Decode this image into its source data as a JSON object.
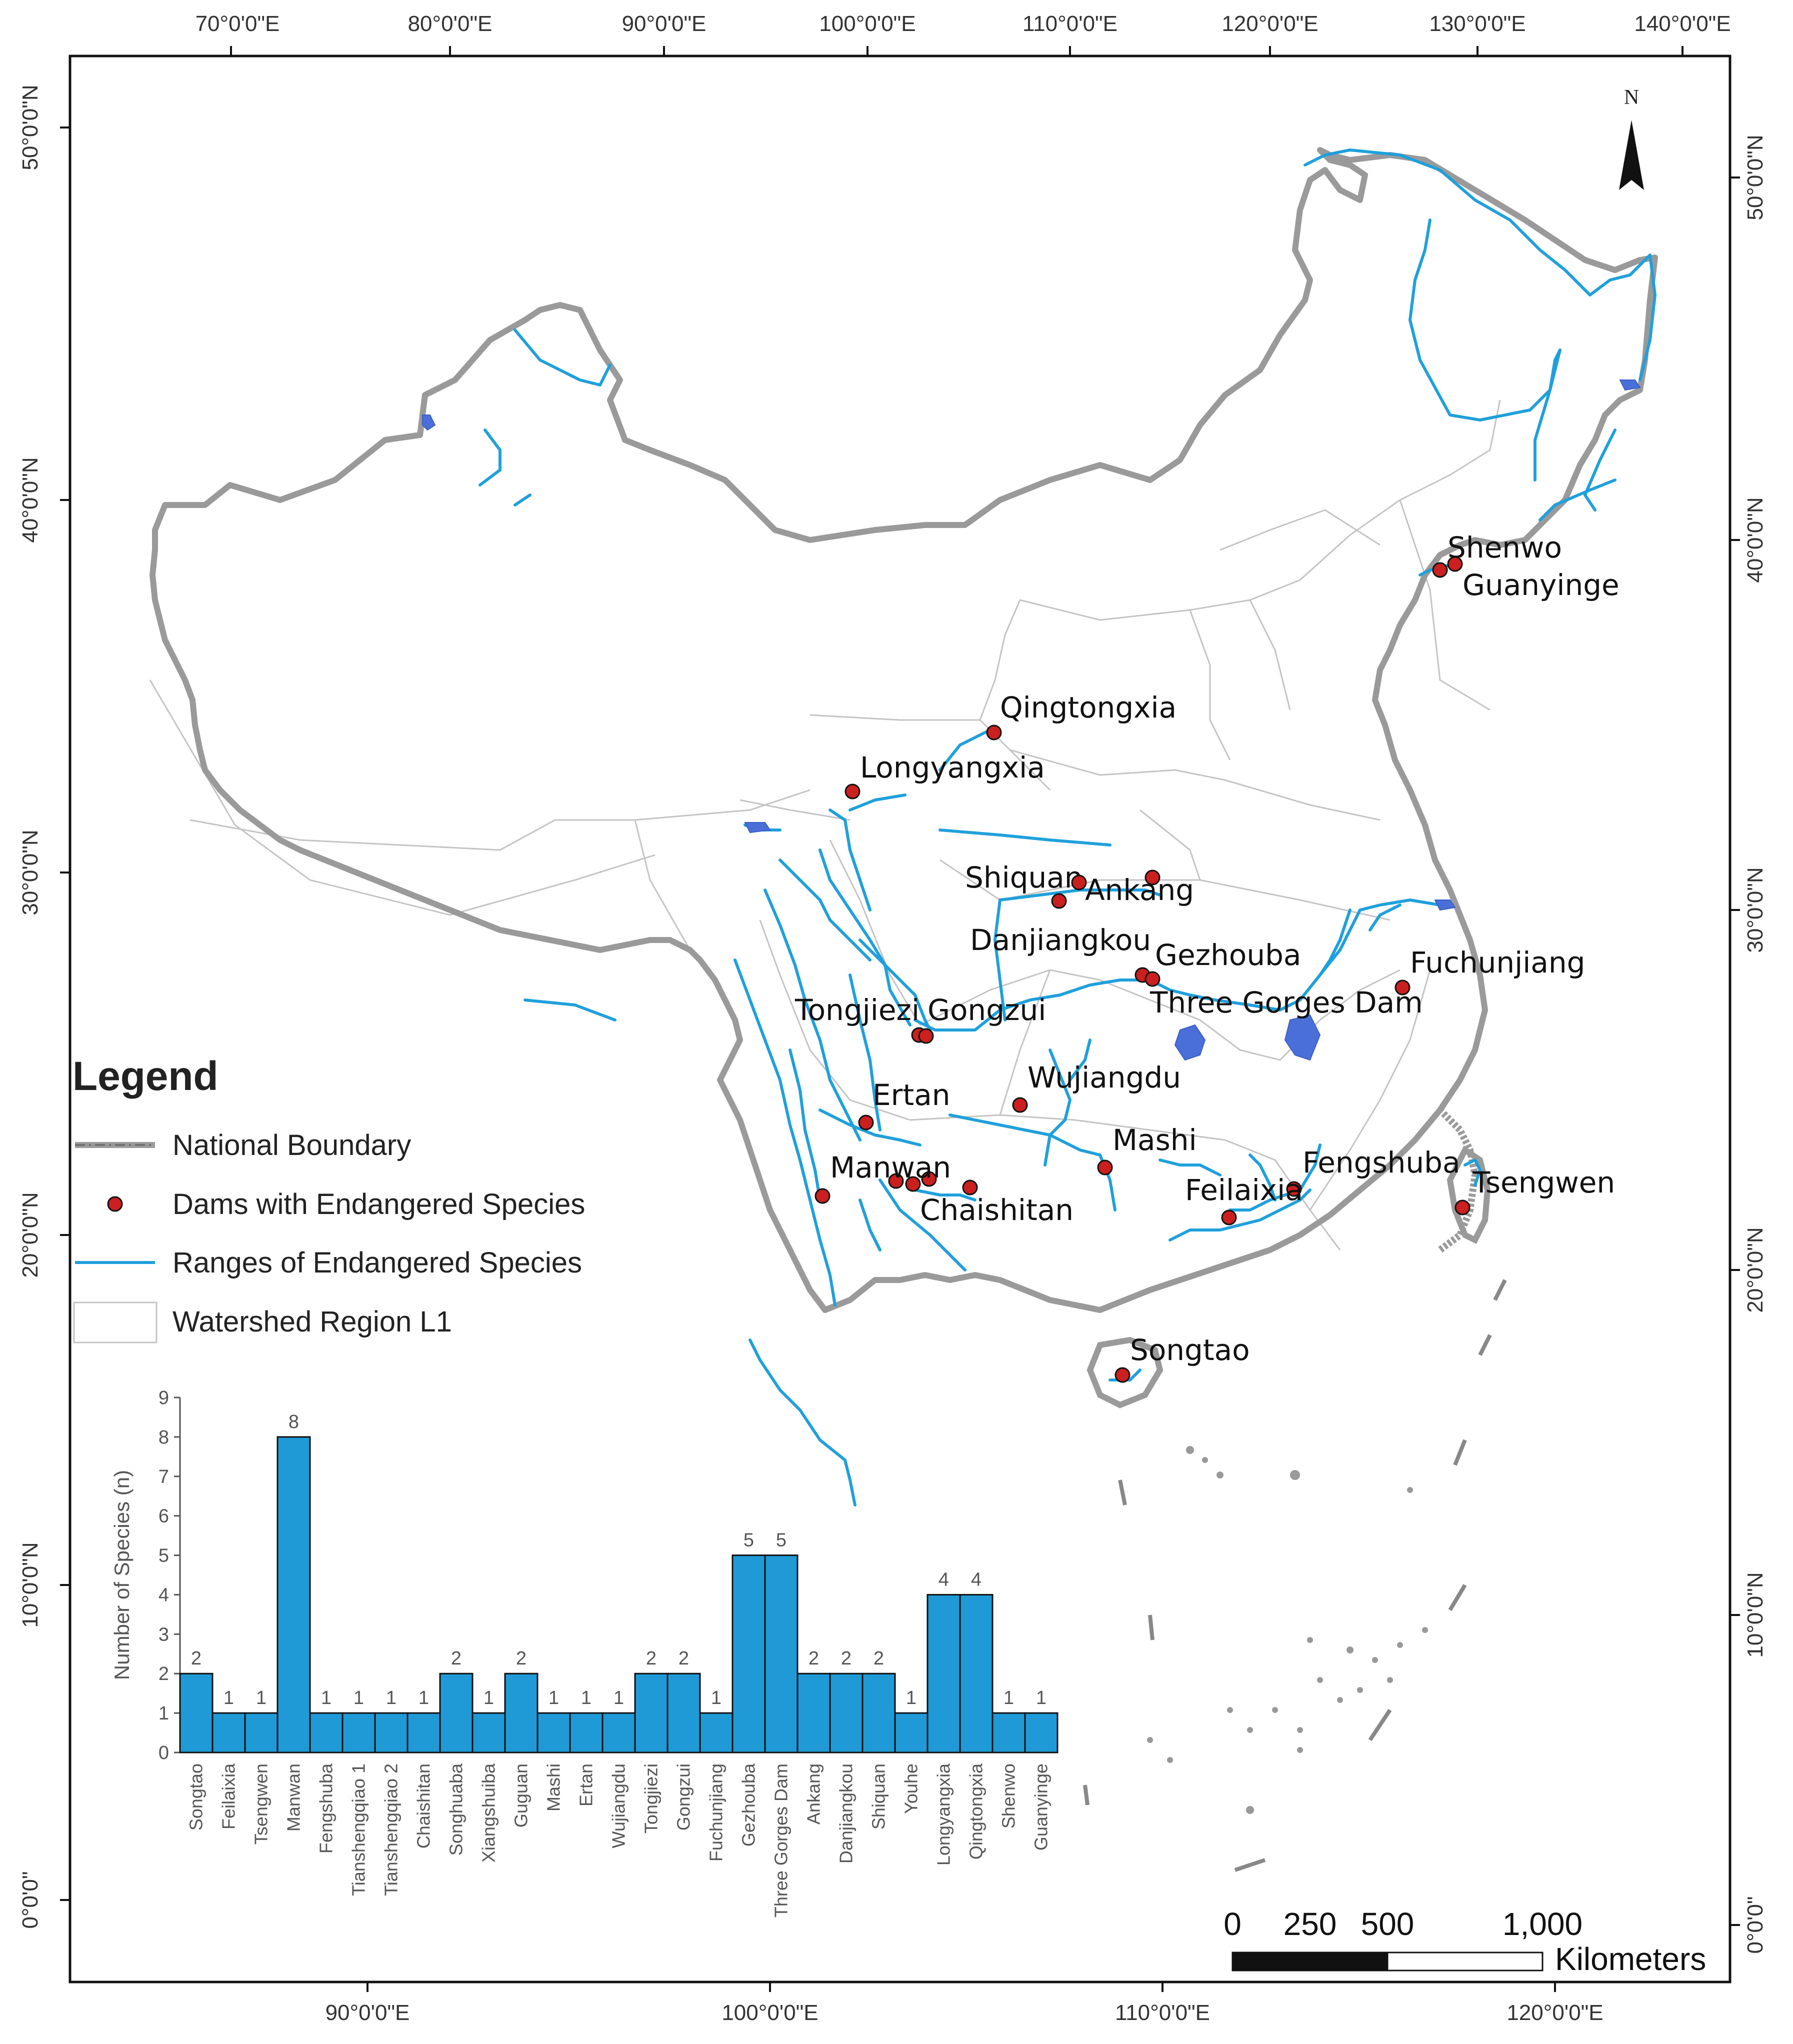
{
  "colors": {
    "boundary": "#9a9a9a",
    "watershed": "#c4c4c4",
    "river": "#1fa0dc",
    "lake": "#4a6fd8",
    "dam": "#cc1f1f",
    "bar": "#1f9ad6"
  },
  "axes": {
    "top": [
      "70°0'0\"E",
      "80°0'0\"E",
      "90°0'0\"E",
      "100°0'0\"E",
      "110°0'0\"E",
      "120°0'0\"E",
      "130°0'0\"E",
      "140°0'0\"E"
    ],
    "bottom": [
      "90°0'0\"E",
      "100°0'0\"E",
      "110°0'0\"E",
      "120°0'0\"E"
    ],
    "left": [
      "50°0'0\"N",
      "40°0'0\"N",
      "30°0'0\"N",
      "20°0'0\"N",
      "10°0'0\"N",
      "0°0'0\""
    ],
    "right": [
      "50°0'0\"N",
      "40°0'0\"N",
      "30°0'0\"N",
      "20°0'0\"N",
      "10°0'0\"N",
      "0°0'0\""
    ]
  },
  "north_arrow": {
    "label": "N"
  },
  "dams": [
    {
      "name": "Shenwo"
    },
    {
      "name": "Guanyinge"
    },
    {
      "name": "Qingtongxia"
    },
    {
      "name": "Longyangxia"
    },
    {
      "name": "Shiquan"
    },
    {
      "name": "Ankang"
    },
    {
      "name": "Danjiangkou"
    },
    {
      "name": "Gezhouba"
    },
    {
      "name": "Three Gorges Dam"
    },
    {
      "name": "Fuchunjiang"
    },
    {
      "name": "Tongjiezi"
    },
    {
      "name": "Gongzui"
    },
    {
      "name": "Wujiangdu"
    },
    {
      "name": "Ertan"
    },
    {
      "name": "Mashi"
    },
    {
      "name": "Manwan"
    },
    {
      "name": "Chaishitan"
    },
    {
      "name": "Fengshuba"
    },
    {
      "name": "Feilaixia"
    },
    {
      "name": "Tsengwen"
    },
    {
      "name": "Songtao"
    }
  ],
  "legend": {
    "title": "Legend",
    "items": [
      {
        "label": "National Boundary",
        "symbol": "boundary-line"
      },
      {
        "label": "Dams with Endangered Species",
        "symbol": "dam-point"
      },
      {
        "label": "Ranges of Endangered Species",
        "symbol": "river-line"
      },
      {
        "label": "Watershed Region L1",
        "symbol": "watershed-box"
      }
    ]
  },
  "scale_bar": {
    "labels": [
      "0",
      "250",
      "500",
      "1,000"
    ],
    "unit": "Kilometers"
  },
  "chart_data": {
    "type": "bar",
    "ylabel": "Number of Species (n)",
    "xlabel": "",
    "ylim": [
      0,
      9
    ],
    "yticks": [
      0,
      1,
      2,
      3,
      4,
      5,
      6,
      7,
      8,
      9
    ],
    "categories": [
      "Songtao",
      "Feilaixia",
      "Tsengwen",
      "Manwan",
      "Fengshuba",
      "Tianshengqiao 1",
      "Tianshengqiao 2",
      "Chaishitan",
      "Songhuaba",
      "Xiangshuiba",
      "Guguan",
      "Mashi",
      "Ertan",
      "Wujiangdu",
      "Tongjiezi",
      "Gongzui",
      "Fuchunjiang",
      "Gezhouba",
      "Three Gorges Dam",
      "Ankang",
      "Danjiangkou",
      "Shiquan",
      "Youhe",
      "Longyangxia",
      "Qingtongxia",
      "Shenwo",
      "Guanyinge"
    ],
    "values": [
      2,
      1,
      1,
      8,
      1,
      1,
      1,
      1,
      2,
      1,
      2,
      1,
      1,
      1,
      2,
      2,
      1,
      5,
      5,
      2,
      2,
      2,
      1,
      4,
      4,
      1,
      1
    ]
  }
}
